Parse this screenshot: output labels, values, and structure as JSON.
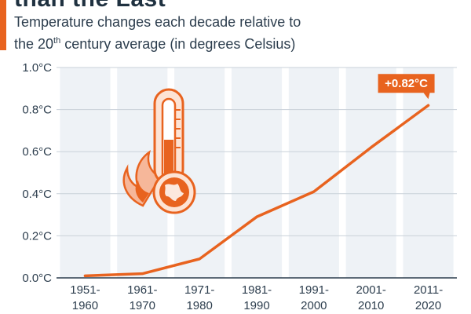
{
  "header": {
    "title_fragment": "than the Last",
    "subtitle_line1": "Temperature changes each decade relative to",
    "subtitle_line2_before": "the 20",
    "subtitle_superscript": "th",
    "subtitle_line2_after": " century average (in degrees Celsius)"
  },
  "colors": {
    "accent": "#e8631f",
    "band": "#eef2f6",
    "text": "#2d3e4e"
  },
  "chart_data": {
    "type": "line",
    "title": "",
    "xlabel": "",
    "ylabel": "",
    "categories": [
      "1951-1960",
      "1961-1970",
      "1971-1980",
      "1981-1990",
      "1991-2000",
      "2001-2010",
      "2011-2020"
    ],
    "category_lines": [
      [
        "1951-",
        "1960"
      ],
      [
        "1961-",
        "1970"
      ],
      [
        "1971-",
        "1980"
      ],
      [
        "1981-",
        "1990"
      ],
      [
        "1991-",
        "2000"
      ],
      [
        "2001-",
        "2010"
      ],
      [
        "2011-",
        "2020"
      ]
    ],
    "values": [
      0.01,
      0.02,
      0.09,
      0.29,
      0.41,
      0.62,
      0.82
    ],
    "ylim": [
      0,
      1.0
    ],
    "yticks": [
      0.0,
      0.2,
      0.4,
      0.6,
      0.8,
      1.0
    ],
    "ytick_labels": [
      "0.0°C",
      "0.2°C",
      "0.4°C",
      "0.6°C",
      "0.8°C",
      "1.0°C"
    ],
    "annotation": {
      "category_index": 6,
      "text": "+0.82°C"
    },
    "grid": true,
    "icon": "thermometer-with-globe-and-flame-icon"
  }
}
